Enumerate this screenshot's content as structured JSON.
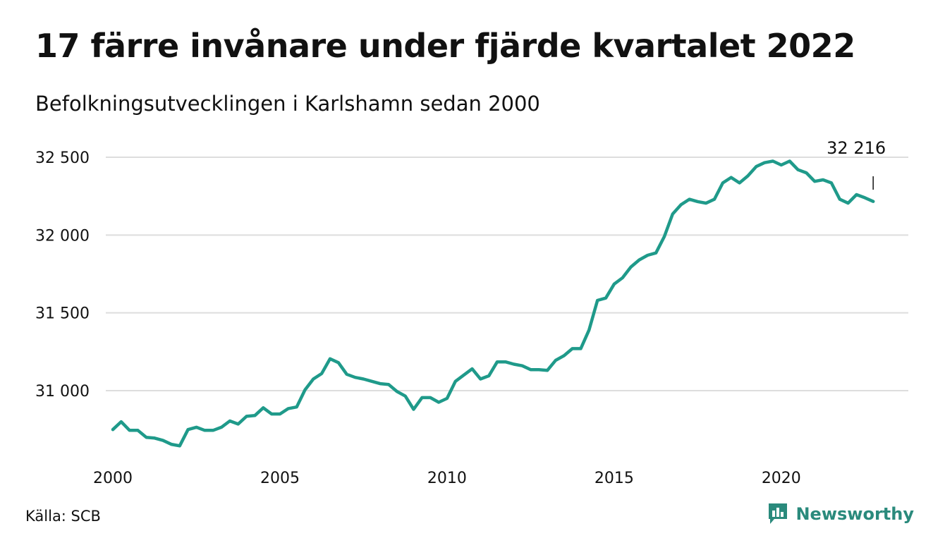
{
  "title": "17 färre invånare under fjärde kvartalet 2022",
  "subtitle": "Befolkningsutvecklingen i Karlshamn sedan 2000",
  "source": "Källa: SCB",
  "brand": {
    "name": "Newsworthy",
    "icon": "newsworthy-logo-icon"
  },
  "colors": {
    "line": "#1f9a8a",
    "grid": "#dddddd",
    "text": "#111111",
    "brand": "#2a8a7c"
  },
  "chart_data": {
    "type": "line",
    "title": "17 färre invånare under fjärde kvartalet 2022",
    "xlabel": "",
    "ylabel": "",
    "xlim": [
      2000,
      2023
    ],
    "ylim": [
      30580,
      32600
    ],
    "x_ticks": [
      {
        "value": 2000,
        "label": "2000"
      },
      {
        "value": 2005,
        "label": "2005"
      },
      {
        "value": 2010,
        "label": "2010"
      },
      {
        "value": 2015,
        "label": "2015"
      },
      {
        "value": 2020,
        "label": "2020"
      }
    ],
    "y_ticks": [
      {
        "value": 31000,
        "label": "31 000"
      },
      {
        "value": 31500,
        "label": "31 500"
      },
      {
        "value": 32000,
        "label": "32 000"
      },
      {
        "value": 32500,
        "label": "32 500"
      }
    ],
    "grid": true,
    "annotation": {
      "label": "32 216",
      "value": 32216
    },
    "series": [
      {
        "x_start": "2000 Q1",
        "step": "quarter",
        "values": [
          30750,
          30800,
          30745,
          30745,
          30700,
          30695,
          30680,
          30655,
          30645,
          30750,
          30765,
          30745,
          30745,
          30765,
          30805,
          30785,
          30835,
          30840,
          30890,
          30850,
          30850,
          30885,
          30895,
          31005,
          31075,
          31110,
          31205,
          31180,
          31105,
          31085,
          31075,
          31060,
          31045,
          31040,
          30995,
          30965,
          30880,
          30955,
          30955,
          30925,
          30950,
          31060,
          31100,
          31140,
          31075,
          31095,
          31185,
          31185,
          31170,
          31160,
          31135,
          31135,
          31130,
          31195,
          31225,
          31270,
          31270,
          31390,
          31580,
          31595,
          31685,
          31725,
          31795,
          31840,
          31870,
          31885,
          31990,
          32135,
          32195,
          32230,
          32215,
          32205,
          32230,
          32335,
          32370,
          32335,
          32380,
          32440,
          32465,
          32475,
          32450,
          32475,
          32420,
          32400,
          32345,
          32355,
          32335,
          32230,
          32205,
          32260,
          32240,
          32216
        ]
      }
    ]
  }
}
